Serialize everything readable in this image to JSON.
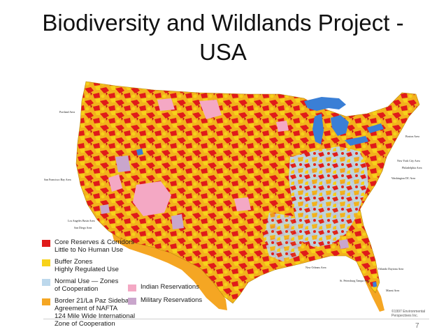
{
  "title_line1": "Biodiversity and Wildlands Project -",
  "title_line2": "USA",
  "colors": {
    "core": "#e01a1a",
    "buffer": "#f7d21a",
    "normal": "#bcd8ec",
    "border_zone": "#f5a623",
    "indian": "#f4a8c4",
    "military": "#c9a6cc",
    "water": "#3a7fd6"
  },
  "legend": [
    {
      "line1": "Core Reserves & Corridors",
      "line2": "Little to No Human Use",
      "color": "#e01a1a"
    },
    {
      "line1": "Buffer Zones",
      "line2": "Highly Regulated Use",
      "color": "#f7d21a"
    },
    {
      "line1": "Normal Use — Zones",
      "line2": "of Cooperation",
      "color": "#bcd8ec"
    },
    {
      "line1": "Border 21/La Paz Sidebar",
      "line2": "Agreement of NAFTA",
      "line3": "124 Mile Wide International",
      "line4": "Zone of Cooperation",
      "color": "#f5a623"
    }
  ],
  "legend2": [
    {
      "label": "Indian Reservations",
      "color": "#f4a8c4"
    },
    {
      "label": "Military Reservations",
      "color": "#c9a6cc"
    }
  ],
  "cities": [
    {
      "name": "Portland Area"
    },
    {
      "name": "San Francisco Bay Area"
    },
    {
      "name": "Los Angeles Basin Area"
    },
    {
      "name": "San Diego Area"
    },
    {
      "name": "Boston Area"
    },
    {
      "name": "New York City Area"
    },
    {
      "name": "Philadelphia Area"
    },
    {
      "name": "Washington DC Area"
    },
    {
      "name": "New Orleans Area"
    },
    {
      "name": "St. Petersburg Tampa Area"
    },
    {
      "name": "Orlando Daytona Area"
    },
    {
      "name": "Miami Area"
    }
  ],
  "copyright": "©1997 Environmental Perspectives Inc.",
  "page_number": "7"
}
